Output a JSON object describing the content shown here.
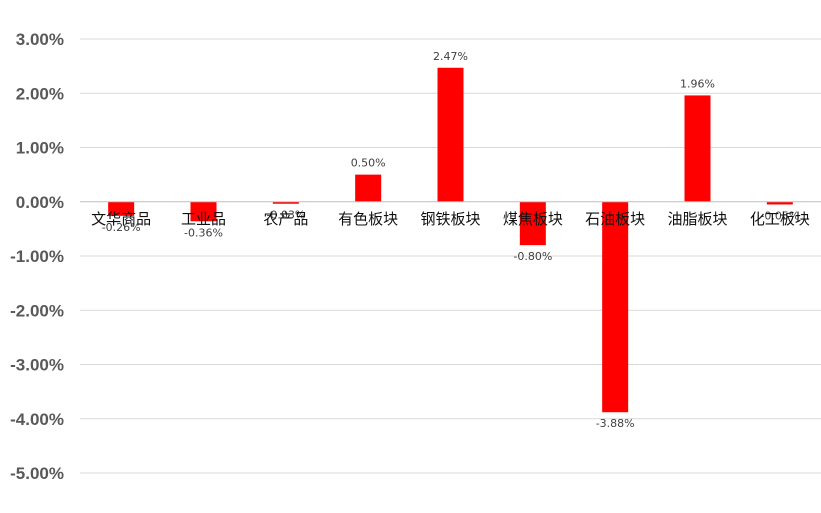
{
  "chart_data": {
    "type": "bar",
    "categories": [
      "文华商品",
      "工业品",
      "农产品",
      "有色板块",
      "钢铁板块",
      "煤焦板块",
      "石油板块",
      "油脂板块",
      "化工板块"
    ],
    "series": [
      {
        "values": [
          -0.26,
          -0.36,
          -0.03,
          0.5,
          2.47,
          -0.8,
          -3.88,
          1.96,
          -0.05
        ],
        "labels": [
          "-0.26%",
          "-0.36%",
          "-0.03%",
          "0.50%",
          "2.47%",
          "-0.80%",
          "-3.88%",
          "1.96%",
          "-0.05%"
        ]
      }
    ],
    "y_ticks": [
      "3.00%",
      "2.00%",
      "1.00%",
      "0.00%",
      "-1.00%",
      "-2.00%",
      "-3.00%",
      "-4.00%",
      "-5.00%"
    ],
    "ylim": [
      -5,
      3
    ],
    "title": "",
    "xlabel": "",
    "ylabel": "",
    "grid": true,
    "legend": "none",
    "bar_color": "#ff0000"
  }
}
